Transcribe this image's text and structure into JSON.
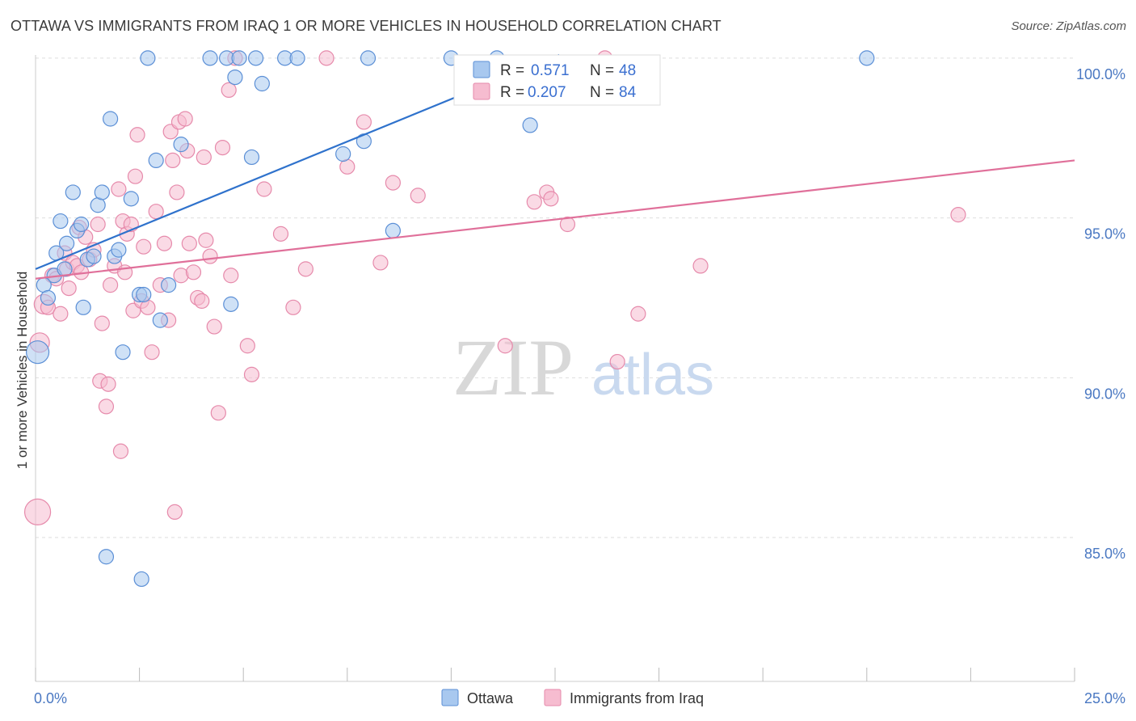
{
  "title": "OTTAWA VS IMMIGRANTS FROM IRAQ 1 OR MORE VEHICLES IN HOUSEHOLD CORRELATION CHART",
  "source": "Source: ZipAtlas.com",
  "watermark": {
    "zip": "ZIP",
    "atlas": "atlas"
  },
  "colors": {
    "ottawa_fill": "#a8c8ef",
    "ottawa_stroke": "#5b8fd6",
    "ottawa_line": "#2f72cc",
    "iraq_fill": "#f6bcd0",
    "iraq_stroke": "#e68aab",
    "iraq_line": "#e0709a",
    "grid": "#dddddd",
    "tick_label": "#4a78c2"
  },
  "legend": {
    "rows": [
      {
        "r_label": "R =",
        "r_value": "0.571",
        "n_label": "N =",
        "n_value": "48"
      },
      {
        "r_label": "R =",
        "r_value": "0.207",
        "n_label": "N =",
        "n_value": "84"
      }
    ]
  },
  "chart_data": {
    "type": "scatter",
    "title": "OTTAWA VS IMMIGRANTS FROM IRAQ 1 OR MORE VEHICLES IN HOUSEHOLD CORRELATION CHART",
    "xlabel": "",
    "ylabel": "1 or more Vehicles in Household",
    "xlim": [
      0,
      25
    ],
    "ylim": [
      80.5,
      100.3
    ],
    "x_tick_labels": [
      {
        "value": 0,
        "label": "0.0%"
      },
      {
        "value": 25,
        "label": "25.0%"
      }
    ],
    "y_tick_labels": [
      {
        "value": 100,
        "label": "100.0%"
      },
      {
        "value": 95,
        "label": "95.0%"
      },
      {
        "value": 90,
        "label": "90.0%"
      },
      {
        "value": 85,
        "label": "85.0%"
      }
    ],
    "grid": true,
    "legend_position": "top-center",
    "series": [
      {
        "name": "Ottawa",
        "r": 0.571,
        "n": 48,
        "trend": {
          "x": [
            0,
            12.6
          ],
          "y": [
            93.4,
            100.1
          ]
        },
        "points": [
          {
            "x": 0.05,
            "y": 90.8,
            "s": 14
          },
          {
            "x": 0.2,
            "y": 92.9,
            "s": 9
          },
          {
            "x": 0.3,
            "y": 92.5,
            "s": 9
          },
          {
            "x": 0.45,
            "y": 93.2,
            "s": 9
          },
          {
            "x": 0.5,
            "y": 93.9,
            "s": 9
          },
          {
            "x": 0.6,
            "y": 94.9,
            "s": 9
          },
          {
            "x": 0.7,
            "y": 93.4,
            "s": 9
          },
          {
            "x": 0.75,
            "y": 94.2,
            "s": 9
          },
          {
            "x": 0.9,
            "y": 95.8,
            "s": 9
          },
          {
            "x": 1.0,
            "y": 94.6,
            "s": 9
          },
          {
            "x": 1.1,
            "y": 94.8,
            "s": 9
          },
          {
            "x": 1.15,
            "y": 92.2,
            "s": 9
          },
          {
            "x": 1.25,
            "y": 93.7,
            "s": 9
          },
          {
            "x": 1.4,
            "y": 93.8,
            "s": 9
          },
          {
            "x": 1.5,
            "y": 95.4,
            "s": 9
          },
          {
            "x": 1.6,
            "y": 95.8,
            "s": 9
          },
          {
            "x": 1.7,
            "y": 84.4,
            "s": 9
          },
          {
            "x": 1.8,
            "y": 98.1,
            "s": 9
          },
          {
            "x": 1.9,
            "y": 93.8,
            "s": 9
          },
          {
            "x": 2.0,
            "y": 94.0,
            "s": 9
          },
          {
            "x": 2.1,
            "y": 90.8,
            "s": 9
          },
          {
            "x": 2.3,
            "y": 95.6,
            "s": 9
          },
          {
            "x": 2.5,
            "y": 92.6,
            "s": 9
          },
          {
            "x": 2.55,
            "y": 83.7,
            "s": 9
          },
          {
            "x": 2.6,
            "y": 92.6,
            "s": 9
          },
          {
            "x": 2.7,
            "y": 100.0,
            "s": 9
          },
          {
            "x": 2.9,
            "y": 96.8,
            "s": 9
          },
          {
            "x": 3.0,
            "y": 91.8,
            "s": 9
          },
          {
            "x": 3.2,
            "y": 92.9,
            "s": 9
          },
          {
            "x": 3.5,
            "y": 97.3,
            "s": 9
          },
          {
            "x": 4.2,
            "y": 100.0,
            "s": 9
          },
          {
            "x": 4.6,
            "y": 100.0,
            "s": 9
          },
          {
            "x": 4.7,
            "y": 92.3,
            "s": 9
          },
          {
            "x": 4.8,
            "y": 99.4,
            "s": 9
          },
          {
            "x": 4.9,
            "y": 100.0,
            "s": 9
          },
          {
            "x": 5.2,
            "y": 96.9,
            "s": 9
          },
          {
            "x": 5.3,
            "y": 100.0,
            "s": 9
          },
          {
            "x": 5.45,
            "y": 99.2,
            "s": 9
          },
          {
            "x": 6.0,
            "y": 100.0,
            "s": 9
          },
          {
            "x": 6.3,
            "y": 100.0,
            "s": 9
          },
          {
            "x": 7.4,
            "y": 97.0,
            "s": 9
          },
          {
            "x": 7.9,
            "y": 97.4,
            "s": 9
          },
          {
            "x": 8.0,
            "y": 100.0,
            "s": 9
          },
          {
            "x": 8.6,
            "y": 94.6,
            "s": 9
          },
          {
            "x": 10.0,
            "y": 100.0,
            "s": 9
          },
          {
            "x": 11.1,
            "y": 100.0,
            "s": 9
          },
          {
            "x": 11.9,
            "y": 97.9,
            "s": 9
          },
          {
            "x": 20.0,
            "y": 100.0,
            "s": 9
          }
        ]
      },
      {
        "name": "Immigrants from Iraq",
        "r": 0.207,
        "n": 84,
        "trend": {
          "x": [
            0,
            25
          ],
          "y": [
            93.1,
            96.8
          ]
        },
        "points": [
          {
            "x": 0.05,
            "y": 85.8,
            "s": 16
          },
          {
            "x": 0.1,
            "y": 91.1,
            "s": 12
          },
          {
            "x": 0.2,
            "y": 92.3,
            "s": 12
          },
          {
            "x": 0.3,
            "y": 92.2,
            "s": 9
          },
          {
            "x": 0.4,
            "y": 93.2,
            "s": 9
          },
          {
            "x": 0.5,
            "y": 93.1,
            "s": 9
          },
          {
            "x": 0.6,
            "y": 92.0,
            "s": 9
          },
          {
            "x": 0.7,
            "y": 93.9,
            "s": 9
          },
          {
            "x": 0.75,
            "y": 93.4,
            "s": 9
          },
          {
            "x": 0.8,
            "y": 92.8,
            "s": 9
          },
          {
            "x": 0.9,
            "y": 93.6,
            "s": 9
          },
          {
            "x": 1.0,
            "y": 93.5,
            "s": 9
          },
          {
            "x": 1.05,
            "y": 94.7,
            "s": 9
          },
          {
            "x": 1.1,
            "y": 93.3,
            "s": 9
          },
          {
            "x": 1.2,
            "y": 94.4,
            "s": 9
          },
          {
            "x": 1.3,
            "y": 93.7,
            "s": 9
          },
          {
            "x": 1.4,
            "y": 94.0,
            "s": 9
          },
          {
            "x": 1.5,
            "y": 94.8,
            "s": 9
          },
          {
            "x": 1.55,
            "y": 89.9,
            "s": 9
          },
          {
            "x": 1.6,
            "y": 91.7,
            "s": 9
          },
          {
            "x": 1.7,
            "y": 89.1,
            "s": 9
          },
          {
            "x": 1.75,
            "y": 89.8,
            "s": 9
          },
          {
            "x": 1.8,
            "y": 92.9,
            "s": 9
          },
          {
            "x": 1.9,
            "y": 93.5,
            "s": 9
          },
          {
            "x": 2.0,
            "y": 95.9,
            "s": 9
          },
          {
            "x": 2.05,
            "y": 87.7,
            "s": 9
          },
          {
            "x": 2.1,
            "y": 94.9,
            "s": 9
          },
          {
            "x": 2.15,
            "y": 93.3,
            "s": 9
          },
          {
            "x": 2.2,
            "y": 94.5,
            "s": 9
          },
          {
            "x": 2.3,
            "y": 94.8,
            "s": 9
          },
          {
            "x": 2.35,
            "y": 92.1,
            "s": 9
          },
          {
            "x": 2.4,
            "y": 96.3,
            "s": 9
          },
          {
            "x": 2.45,
            "y": 97.6,
            "s": 9
          },
          {
            "x": 2.55,
            "y": 92.4,
            "s": 9
          },
          {
            "x": 2.6,
            "y": 94.1,
            "s": 9
          },
          {
            "x": 2.7,
            "y": 92.2,
            "s": 9
          },
          {
            "x": 2.8,
            "y": 90.8,
            "s": 9
          },
          {
            "x": 2.9,
            "y": 95.2,
            "s": 9
          },
          {
            "x": 3.0,
            "y": 92.9,
            "s": 9
          },
          {
            "x": 3.1,
            "y": 94.2,
            "s": 9
          },
          {
            "x": 3.2,
            "y": 91.8,
            "s": 9
          },
          {
            "x": 3.25,
            "y": 97.7,
            "s": 9
          },
          {
            "x": 3.3,
            "y": 96.8,
            "s": 9
          },
          {
            "x": 3.35,
            "y": 85.8,
            "s": 9
          },
          {
            "x": 3.4,
            "y": 95.8,
            "s": 9
          },
          {
            "x": 3.45,
            "y": 98.0,
            "s": 9
          },
          {
            "x": 3.5,
            "y": 93.2,
            "s": 9
          },
          {
            "x": 3.6,
            "y": 98.1,
            "s": 9
          },
          {
            "x": 3.65,
            "y": 97.1,
            "s": 9
          },
          {
            "x": 3.7,
            "y": 94.2,
            "s": 9
          },
          {
            "x": 3.8,
            "y": 93.3,
            "s": 9
          },
          {
            "x": 3.9,
            "y": 92.5,
            "s": 9
          },
          {
            "x": 4.0,
            "y": 92.4,
            "s": 9
          },
          {
            "x": 4.05,
            "y": 96.9,
            "s": 9
          },
          {
            "x": 4.1,
            "y": 94.3,
            "s": 9
          },
          {
            "x": 4.2,
            "y": 93.8,
            "s": 9
          },
          {
            "x": 4.3,
            "y": 91.6,
            "s": 9
          },
          {
            "x": 4.4,
            "y": 88.9,
            "s": 9
          },
          {
            "x": 4.5,
            "y": 97.2,
            "s": 9
          },
          {
            "x": 4.65,
            "y": 99.0,
            "s": 9
          },
          {
            "x": 4.7,
            "y": 93.2,
            "s": 9
          },
          {
            "x": 4.8,
            "y": 100.0,
            "s": 9
          },
          {
            "x": 5.1,
            "y": 91.0,
            "s": 9
          },
          {
            "x": 5.2,
            "y": 90.1,
            "s": 9
          },
          {
            "x": 5.5,
            "y": 95.9,
            "s": 9
          },
          {
            "x": 5.9,
            "y": 94.5,
            "s": 9
          },
          {
            "x": 6.2,
            "y": 92.2,
            "s": 9
          },
          {
            "x": 6.5,
            "y": 93.4,
            "s": 9
          },
          {
            "x": 7.0,
            "y": 100.0,
            "s": 9
          },
          {
            "x": 7.5,
            "y": 96.6,
            "s": 9
          },
          {
            "x": 7.9,
            "y": 98.0,
            "s": 9
          },
          {
            "x": 8.3,
            "y": 93.6,
            "s": 9
          },
          {
            "x": 8.6,
            "y": 96.1,
            "s": 9
          },
          {
            "x": 9.2,
            "y": 95.7,
            "s": 9
          },
          {
            "x": 11.3,
            "y": 91.0,
            "s": 9
          },
          {
            "x": 12.0,
            "y": 95.5,
            "s": 9
          },
          {
            "x": 12.3,
            "y": 95.8,
            "s": 9
          },
          {
            "x": 12.4,
            "y": 95.6,
            "s": 9
          },
          {
            "x": 12.8,
            "y": 94.8,
            "s": 9
          },
          {
            "x": 13.7,
            "y": 100.0,
            "s": 9
          },
          {
            "x": 14.0,
            "y": 90.5,
            "s": 9
          },
          {
            "x": 14.5,
            "y": 92.0,
            "s": 9
          },
          {
            "x": 16.0,
            "y": 93.5,
            "s": 9
          },
          {
            "x": 22.2,
            "y": 95.1,
            "s": 9
          }
        ]
      }
    ]
  }
}
